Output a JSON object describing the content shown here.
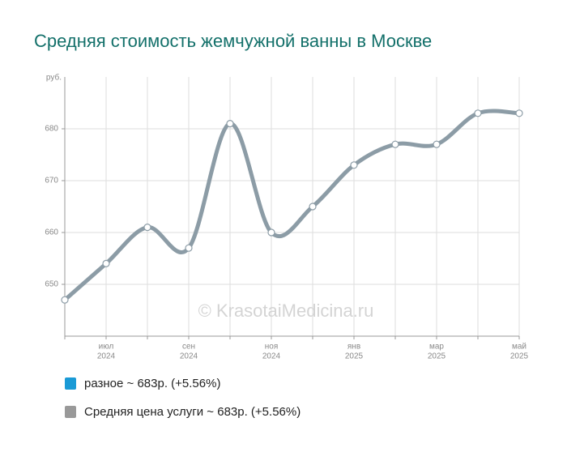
{
  "chart_data": {
    "type": "line",
    "title": "Средняя стоимость жемчужной ванны в Москве",
    "y_axis_label": "руб.",
    "watermark": "© KrasotaiMedicina.ru",
    "categories": [
      null,
      "июл",
      null,
      "сен",
      null,
      "ноя",
      null,
      "янв",
      null,
      "мар",
      null,
      "май"
    ],
    "category_years": [
      null,
      "2024",
      null,
      "2024",
      null,
      "2024",
      null,
      "2025",
      null,
      "2025",
      null,
      "2025"
    ],
    "series": [
      {
        "name": "разное ~ 683р. (+5.56%)",
        "color": "#1a9ad6",
        "values": [
          647,
          654,
          661,
          657,
          681,
          660,
          665,
          673,
          677,
          677,
          683,
          683
        ]
      },
      {
        "name": "Средняя цена услуги ~ 683р. (+5.56%)",
        "color": "#8c9ca6",
        "values": [
          647,
          654,
          661,
          657,
          681,
          660,
          665,
          673,
          677,
          677,
          683,
          683
        ]
      }
    ],
    "ylim": [
      640,
      690
    ],
    "yticks": [
      650,
      660,
      670,
      680
    ],
    "grid": true
  }
}
